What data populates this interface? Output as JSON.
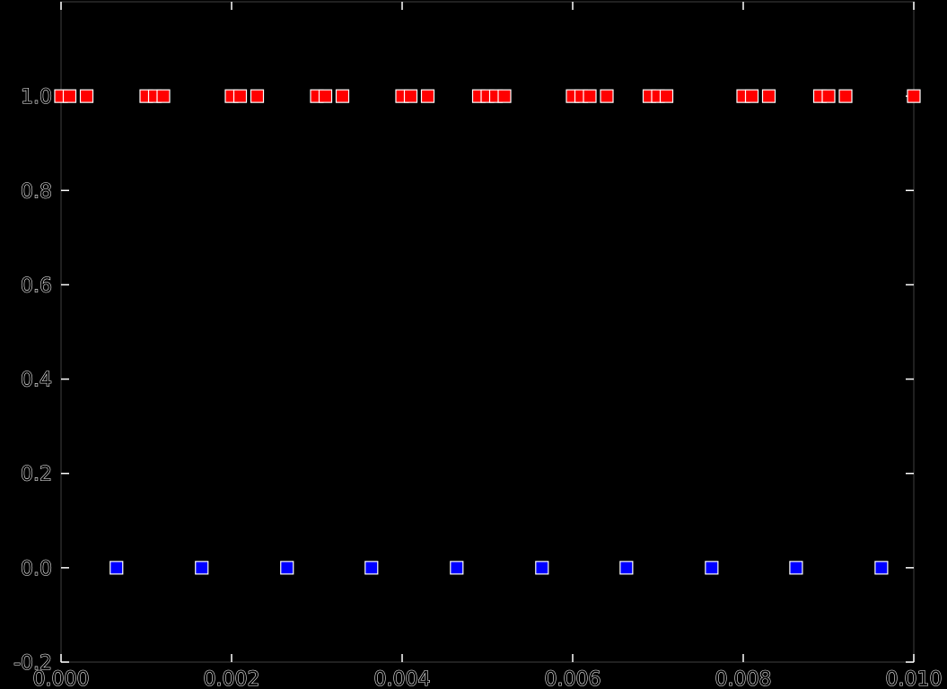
{
  "chart_data": {
    "type": "scatter",
    "title": "",
    "xlabel": "",
    "ylabel": "",
    "xlim": [
      0.0,
      0.01
    ],
    "ylim": [
      -0.2,
      1.2
    ],
    "x_ticks": [
      "0.000",
      "0.002",
      "0.004",
      "0.006",
      "0.008",
      "0.010"
    ],
    "y_ticks": [
      "-0.2",
      "0.0",
      "0.2",
      "0.4",
      "0.6",
      "0.8",
      "1.0"
    ],
    "grid": false,
    "legend": "none",
    "series": [
      {
        "color": "#ff0000",
        "marker": "square",
        "x": [
          0.0,
          0.0001,
          0.0003,
          0.001,
          0.0011,
          0.0012,
          0.002,
          0.0021,
          0.0023,
          0.003,
          0.0031,
          0.0033,
          0.004,
          0.0041,
          0.0043,
          0.0049,
          0.005,
          0.0051,
          0.0052,
          0.006,
          0.0061,
          0.0062,
          0.0064,
          0.0069,
          0.007,
          0.0071,
          0.008,
          0.0081,
          0.0083,
          0.0089,
          0.009,
          0.0092,
          0.01
        ],
        "y": [
          1.0,
          1.0,
          1.0,
          1.0,
          1.0,
          1.0,
          1.0,
          1.0,
          1.0,
          1.0,
          1.0,
          1.0,
          1.0,
          1.0,
          1.0,
          1.0,
          1.0,
          1.0,
          1.0,
          1.0,
          1.0,
          1.0,
          1.0,
          1.0,
          1.0,
          1.0,
          1.0,
          1.0,
          1.0,
          1.0,
          1.0,
          1.0,
          1.0
        ]
      },
      {
        "color": "#0000ff",
        "marker": "square",
        "x": [
          0.00065,
          0.00165,
          0.00265,
          0.00364,
          0.00464,
          0.00564,
          0.00663,
          0.00763,
          0.00862,
          0.00962
        ],
        "y": [
          0.0,
          0.0,
          0.0,
          0.0,
          0.0,
          0.0,
          0.0,
          0.0,
          0.0,
          0.0
        ]
      }
    ]
  }
}
